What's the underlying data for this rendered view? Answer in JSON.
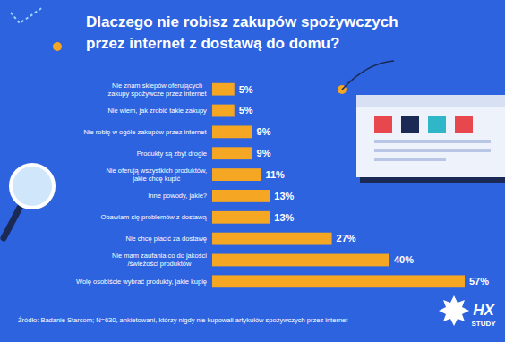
{
  "chart_data": {
    "type": "bar",
    "orientation": "horizontal",
    "title": "Dlaczego nie robisz zakupów spożywczych\nprzez internet z dostawą do domu?",
    "categories": [
      "Nie znam sklepów oferujących\nzakupy spożywcze przez internet",
      "Nie wiem, jak zrobić takie zakupy",
      "Nie robię w ogóle zakupów przez internet",
      "Produkty są zbyt drogie",
      "Nie oferują wszystkich produktów,\njakie chcę kupić",
      "Inne powody, jakie?",
      "Obawiam się problemów z dostawą",
      "Nie chcę płacić za dostawę",
      "Nie mam zaufania co do jakości\n/świeżości produktów",
      "Wolę osobiście wybrać produkty, jakie kupię"
    ],
    "values": [
      5,
      5,
      9,
      9,
      11,
      13,
      13,
      27,
      40,
      57
    ],
    "value_labels": [
      "5%",
      "5%",
      "9%",
      "9%",
      "11%",
      "13%",
      "13%",
      "27%",
      "40%",
      "57%"
    ],
    "data_labels": true,
    "tick_labels": "y",
    "grid": false,
    "color": "#f5a623",
    "annotations": [
      "Źródło: Badanie Starcom; N=630, ankietowani, którzy nigdy nie kupowali artykułów spożywczych przez internet",
      "HX",
      "STUDY"
    ]
  }
}
